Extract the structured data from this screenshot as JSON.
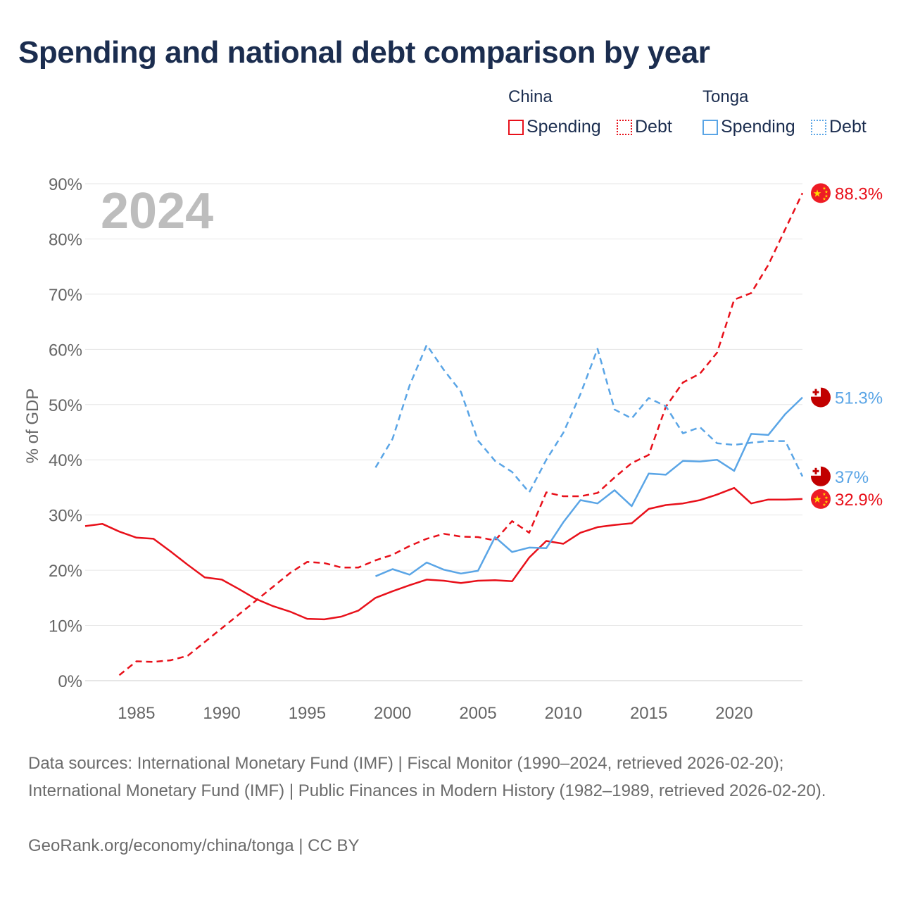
{
  "title": "Spending and national debt comparison by year",
  "legend": {
    "china_label": "China",
    "tonga_label": "Tonga",
    "spending_label": "Spending",
    "debt_label": "Debt"
  },
  "colors": {
    "china": "#e8101a",
    "tonga": "#5aa5e6"
  },
  "chart_data": {
    "type": "line",
    "year_label": "2024",
    "ylabel": "% of GDP",
    "xlim": [
      1982,
      2024
    ],
    "ylim": [
      0,
      90
    ],
    "x_ticks": [
      1985,
      1990,
      1995,
      2000,
      2005,
      2010,
      2015,
      2020
    ],
    "y_ticks": [
      0,
      10,
      20,
      30,
      40,
      50,
      60,
      70,
      80,
      90
    ],
    "y_tick_labels": [
      "0%",
      "10%",
      "20%",
      "30%",
      "40%",
      "50%",
      "60%",
      "70%",
      "80%",
      "90%"
    ],
    "series": [
      {
        "name": "China Spending",
        "country": "China",
        "measure": "Spending",
        "style": "solid",
        "color": "#e8101a",
        "end_label": "32.9%",
        "flag": "china-flag-icon",
        "points": [
          [
            1982,
            28
          ],
          [
            1983,
            28.4
          ],
          [
            1984,
            27
          ],
          [
            1985,
            25.9
          ],
          [
            1986,
            25.7
          ],
          [
            1987,
            23.4
          ],
          [
            1988,
            21
          ],
          [
            1989,
            18.7
          ],
          [
            1990,
            18.3
          ],
          [
            1991,
            16.6
          ],
          [
            1992,
            14.8
          ],
          [
            1993,
            13.5
          ],
          [
            1994,
            12.5
          ],
          [
            1995,
            11.2
          ],
          [
            1996,
            11.1
          ],
          [
            1997,
            11.6
          ],
          [
            1998,
            12.7
          ],
          [
            1999,
            15
          ],
          [
            2000,
            16.2
          ],
          [
            2001,
            17.3
          ],
          [
            2002,
            18.3
          ],
          [
            2003,
            18.1
          ],
          [
            2004,
            17.7
          ],
          [
            2005,
            18.1
          ],
          [
            2006,
            18.2
          ],
          [
            2007,
            18
          ],
          [
            2008,
            22.3
          ],
          [
            2009,
            25.3
          ],
          [
            2010,
            24.8
          ],
          [
            2011,
            26.8
          ],
          [
            2012,
            27.8
          ],
          [
            2013,
            28.2
          ],
          [
            2014,
            28.5
          ],
          [
            2015,
            31.1
          ],
          [
            2016,
            31.8
          ],
          [
            2017,
            32.1
          ],
          [
            2018,
            32.7
          ],
          [
            2019,
            33.7
          ],
          [
            2020,
            34.9
          ],
          [
            2021,
            32.1
          ],
          [
            2022,
            32.8
          ],
          [
            2023,
            32.8
          ],
          [
            2024,
            32.9
          ]
        ]
      },
      {
        "name": "China Debt",
        "country": "China",
        "measure": "Debt",
        "style": "dashed",
        "color": "#e8101a",
        "end_label": "88.3%",
        "flag": "china-flag-icon",
        "points": [
          [
            1984,
            1
          ],
          [
            1985,
            3.5
          ],
          [
            1986,
            3.4
          ],
          [
            1987,
            3.7
          ],
          [
            1988,
            4.5
          ],
          [
            1989,
            7
          ],
          [
            1990,
            9.5
          ],
          [
            1991,
            12
          ],
          [
            1992,
            14.5
          ],
          [
            1993,
            17
          ],
          [
            1994,
            19.5
          ],
          [
            1995,
            21.5
          ],
          [
            1996,
            21.3
          ],
          [
            1997,
            20.5
          ],
          [
            1998,
            20.5
          ],
          [
            1999,
            21.8
          ],
          [
            2000,
            22.8
          ],
          [
            2001,
            24.4
          ],
          [
            2002,
            25.7
          ],
          [
            2003,
            26.6
          ],
          [
            2004,
            26.1
          ],
          [
            2005,
            26
          ],
          [
            2006,
            25.4
          ],
          [
            2007,
            28.9
          ],
          [
            2008,
            26.8
          ],
          [
            2009,
            34.1
          ],
          [
            2010,
            33.4
          ],
          [
            2011,
            33.4
          ],
          [
            2012,
            34
          ],
          [
            2013,
            36.8
          ],
          [
            2014,
            39.4
          ],
          [
            2015,
            40.9
          ],
          [
            2016,
            49.6
          ],
          [
            2017,
            54
          ],
          [
            2018,
            55.6
          ],
          [
            2019,
            59.4
          ],
          [
            2020,
            69
          ],
          [
            2021,
            70.2
          ],
          [
            2022,
            75.3
          ],
          [
            2023,
            81.8
          ],
          [
            2024,
            88.3
          ]
        ]
      },
      {
        "name": "Tonga Spending",
        "country": "Tonga",
        "measure": "Spending",
        "style": "solid",
        "color": "#5aa5e6",
        "end_label": "51.3%",
        "flag": "tonga-flag-icon",
        "points": [
          [
            1999,
            18.9
          ],
          [
            2000,
            20.2
          ],
          [
            2001,
            19.2
          ],
          [
            2002,
            21.4
          ],
          [
            2003,
            20.1
          ],
          [
            2004,
            19.4
          ],
          [
            2005,
            19.9
          ],
          [
            2006,
            26
          ],
          [
            2007,
            23.3
          ],
          [
            2008,
            24.1
          ],
          [
            2009,
            24
          ],
          [
            2010,
            28.7
          ],
          [
            2011,
            32.7
          ],
          [
            2012,
            32.1
          ],
          [
            2013,
            34.5
          ],
          [
            2014,
            31.6
          ],
          [
            2015,
            37.5
          ],
          [
            2016,
            37.3
          ],
          [
            2017,
            39.8
          ],
          [
            2018,
            39.7
          ],
          [
            2019,
            40
          ],
          [
            2020,
            38
          ],
          [
            2021,
            44.7
          ],
          [
            2022,
            44.5
          ],
          [
            2023,
            48.3
          ],
          [
            2024,
            51.3
          ]
        ]
      },
      {
        "name": "Tonga Debt",
        "country": "Tonga",
        "measure": "Debt",
        "style": "dashed",
        "color": "#5aa5e6",
        "end_label": "37%",
        "flag": "tonga-flag-icon",
        "points": [
          [
            1999,
            38.6
          ],
          [
            2000,
            43.8
          ],
          [
            2001,
            53.5
          ],
          [
            2002,
            60.8
          ],
          [
            2003,
            56.3
          ],
          [
            2004,
            52.3
          ],
          [
            2005,
            43.5
          ],
          [
            2006,
            39.8
          ],
          [
            2007,
            37.8
          ],
          [
            2008,
            34.1
          ],
          [
            2009,
            40
          ],
          [
            2010,
            44.9
          ],
          [
            2011,
            51.9
          ],
          [
            2012,
            60.1
          ],
          [
            2013,
            49.1
          ],
          [
            2014,
            47.5
          ],
          [
            2015,
            51.2
          ],
          [
            2016,
            49.7
          ],
          [
            2017,
            44.8
          ],
          [
            2018,
            45.9
          ],
          [
            2019,
            43
          ],
          [
            2020,
            42.7
          ],
          [
            2021,
            43.1
          ],
          [
            2022,
            43.4
          ],
          [
            2023,
            43.4
          ],
          [
            2024,
            37
          ]
        ]
      }
    ]
  },
  "footer": {
    "sources": "Data sources: International Monetary Fund (IMF) | Fiscal Monitor (1990–2024, retrieved 2026-02-20); International Monetary Fund (IMF) | Public Finances in Modern History (1982–1989, retrieved 2026-02-20).",
    "credit": "GeoRank.org/economy/china/tonga | CC BY"
  }
}
